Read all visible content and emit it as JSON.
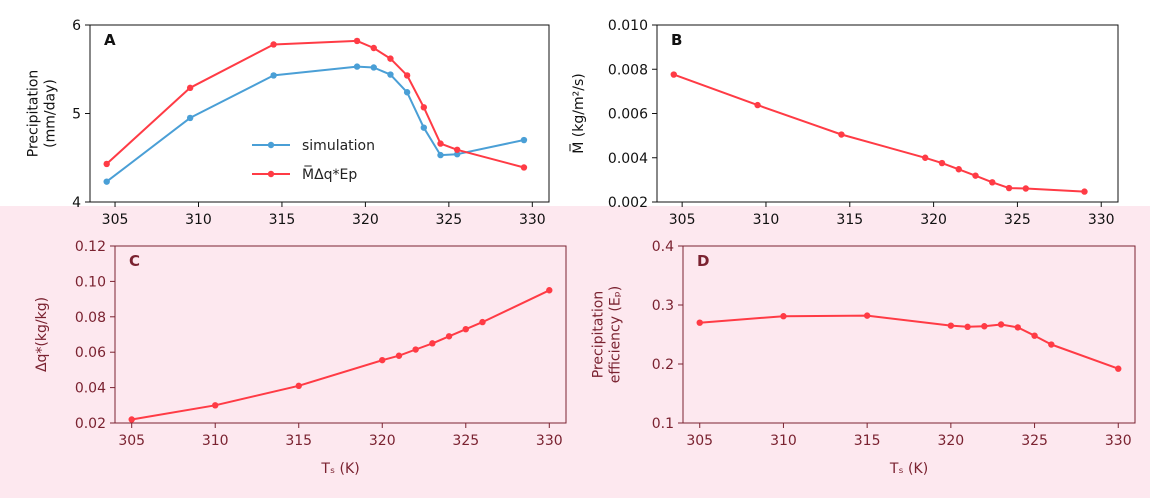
{
  "colors": {
    "simulation": "#4a9fd6",
    "model": "#ff3b45",
    "ink_top": "#111111",
    "ink_bottom": "#7a2230",
    "tint_bottom": "#fde8ef"
  },
  "chart_data": [
    {
      "id": "A",
      "type": "line",
      "panel_label": "A",
      "xlabel": "",
      "ylabel": "Precipitation\n(mm/day)",
      "xlim": [
        303.5,
        331
      ],
      "ylim": [
        4,
        6
      ],
      "xticks": [
        305,
        310,
        315,
        320,
        325,
        330
      ],
      "yticks": [
        4,
        5,
        6
      ],
      "legend": "center",
      "series": [
        {
          "name": "simulation",
          "x": [
            304.5,
            309.5,
            314.5,
            319.5,
            320.5,
            321.5,
            322.5,
            323.5,
            324.5,
            325.5,
            329.5
          ],
          "y": [
            4.23,
            4.95,
            5.43,
            5.53,
            5.52,
            5.44,
            5.24,
            4.84,
            4.53,
            4.54,
            4.7
          ]
        },
        {
          "name": "M̅Δq*Ep",
          "x": [
            304.5,
            309.5,
            314.5,
            319.5,
            320.5,
            321.5,
            322.5,
            323.5,
            324.5,
            325.5,
            329.5
          ],
          "y": [
            4.43,
            5.29,
            5.78,
            5.82,
            5.74,
            5.62,
            5.43,
            5.07,
            4.66,
            4.59,
            4.39
          ]
        }
      ]
    },
    {
      "id": "B",
      "type": "line",
      "panel_label": "B",
      "xlabel": "",
      "ylabel": "M̅ (kg/m²/s)",
      "xlim": [
        303.5,
        331
      ],
      "ylim": [
        0.002,
        0.01
      ],
      "xticks": [
        305,
        310,
        315,
        320,
        325,
        330
      ],
      "yticks": [
        0.002,
        0.004,
        0.006,
        0.008,
        0.01
      ],
      "ytick_labels": [
        "0.002",
        "0.004",
        "0.006",
        "0.008",
        "0.010"
      ],
      "series": [
        {
          "x": [
            304.5,
            309.5,
            314.5,
            319.5,
            320.5,
            321.5,
            322.5,
            323.5,
            324.5,
            325.5,
            329
          ],
          "y": [
            0.00776,
            0.00638,
            0.00505,
            0.004,
            0.00376,
            0.00348,
            0.00319,
            0.00289,
            0.00263,
            0.00261,
            0.00247
          ]
        }
      ]
    },
    {
      "id": "C",
      "type": "line",
      "panel_label": "C",
      "xlabel": "Tₛ (K)",
      "ylabel": "Δq*(kg/kg)",
      "xlim": [
        304,
        331
      ],
      "ylim": [
        0.02,
        0.12
      ],
      "xticks": [
        305,
        310,
        315,
        320,
        325,
        330
      ],
      "yticks": [
        0.02,
        0.04,
        0.06,
        0.08,
        0.1,
        0.12
      ],
      "ytick_labels": [
        "0.02",
        "0.04",
        "0.06",
        "0.08",
        "0.10",
        "0.12"
      ],
      "series": [
        {
          "x": [
            305,
            310,
            315,
            320,
            321,
            322,
            323,
            324,
            325,
            326,
            330
          ],
          "y": [
            0.022,
            0.03,
            0.041,
            0.0555,
            0.058,
            0.0615,
            0.065,
            0.069,
            0.073,
            0.077,
            0.095
          ]
        }
      ]
    },
    {
      "id": "D",
      "type": "line",
      "panel_label": "D",
      "xlabel": "Tₛ (K)",
      "ylabel": "Precipitation\nefficiency (Eₚ)",
      "xlim": [
        304,
        331
      ],
      "ylim": [
        0.1,
        0.4
      ],
      "xticks": [
        305,
        310,
        315,
        320,
        325,
        330
      ],
      "yticks": [
        0.1,
        0.2,
        0.3,
        0.4
      ],
      "series": [
        {
          "x": [
            305,
            310,
            315,
            320,
            321,
            322,
            323,
            324,
            325,
            326,
            330
          ],
          "y": [
            0.27,
            0.281,
            0.282,
            0.265,
            0.263,
            0.264,
            0.267,
            0.262,
            0.248,
            0.233,
            0.192
          ]
        }
      ]
    }
  ]
}
